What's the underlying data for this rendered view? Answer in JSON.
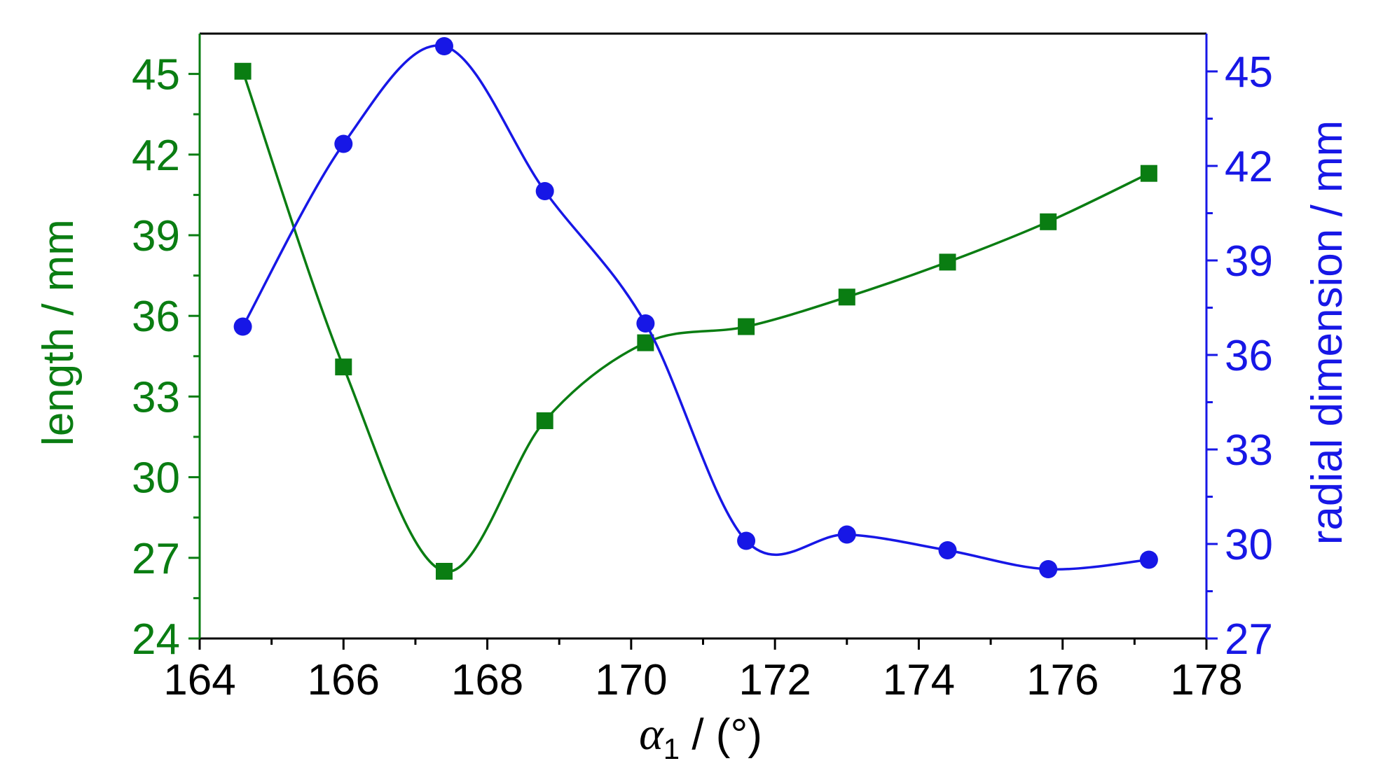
{
  "chart_data": {
    "type": "line",
    "x": [
      164.6,
      166.0,
      167.4,
      168.8,
      170.2,
      171.6,
      173.0,
      174.4,
      175.8,
      177.2
    ],
    "xlim": [
      164,
      178
    ],
    "xticks": [
      "164",
      "166",
      "168",
      "170",
      "172",
      "174",
      "176",
      "178"
    ],
    "xlabel": {
      "symbol": "α",
      "subscript": "1",
      "unit": " / (°)"
    },
    "series": [
      {
        "axis": "left",
        "marker": "square",
        "color": "#0a7d12",
        "values": [
          45.1,
          34.1,
          26.5,
          32.1,
          35.0,
          35.6,
          36.7,
          38.0,
          39.5,
          41.3
        ]
      },
      {
        "axis": "right",
        "marker": "circle",
        "color": "#1717e6",
        "values": [
          36.9,
          42.7,
          45.8,
          41.2,
          37.0,
          30.1,
          30.3,
          29.8,
          29.2,
          29.5
        ]
      }
    ],
    "yleft": {
      "label": "length / mm",
      "ylim": [
        24,
        46.5
      ],
      "ticks": [
        "24",
        "27",
        "30",
        "33",
        "36",
        "39",
        "42",
        "45"
      ],
      "color": "#0a7d12"
    },
    "yright": {
      "label": "radial dimension / mm",
      "ylim": [
        27,
        46.2
      ],
      "ticks": [
        "27",
        "30",
        "33",
        "36",
        "39",
        "42",
        "45"
      ],
      "color": "#1717e6"
    },
    "grid": false,
    "legend": "none"
  }
}
